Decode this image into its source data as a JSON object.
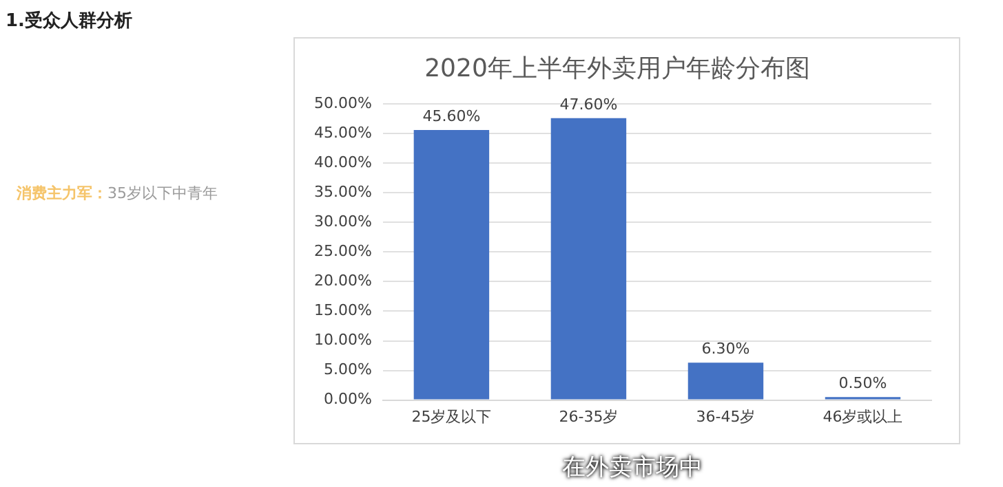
{
  "chart_data": {
    "type": "bar",
    "title": "2020年上半年外卖用户年龄分布图",
    "categories": [
      "25岁及以下",
      "26-35岁",
      "36-45岁",
      "46岁或以上"
    ],
    "values": [
      45.6,
      47.6,
      6.3,
      0.5
    ],
    "value_labels": [
      "45.60%",
      "47.60%",
      "6.30%",
      "0.50%"
    ],
    "color": "#4472c4",
    "ylim": [
      0,
      50
    ],
    "yticks": [
      {
        "value": 0,
        "label": "0.00%"
      },
      {
        "value": 5,
        "label": "5.00%"
      },
      {
        "value": 10,
        "label": "10.00%"
      },
      {
        "value": 15,
        "label": "15.00%"
      },
      {
        "value": 20,
        "label": "20.00%"
      },
      {
        "value": 25,
        "label": "25.00%"
      },
      {
        "value": 30,
        "label": "30.00%"
      },
      {
        "value": 35,
        "label": "35.00%"
      },
      {
        "value": 40,
        "label": "40.00%"
      },
      {
        "value": 45,
        "label": "45.00%"
      },
      {
        "value": 50,
        "label": "50.00%"
      }
    ],
    "grid": "y",
    "legend": false,
    "annotations": [
      "1.受众人群分析",
      "消费主力军：",
      "35岁以下中青年",
      "在外卖市场中"
    ]
  }
}
